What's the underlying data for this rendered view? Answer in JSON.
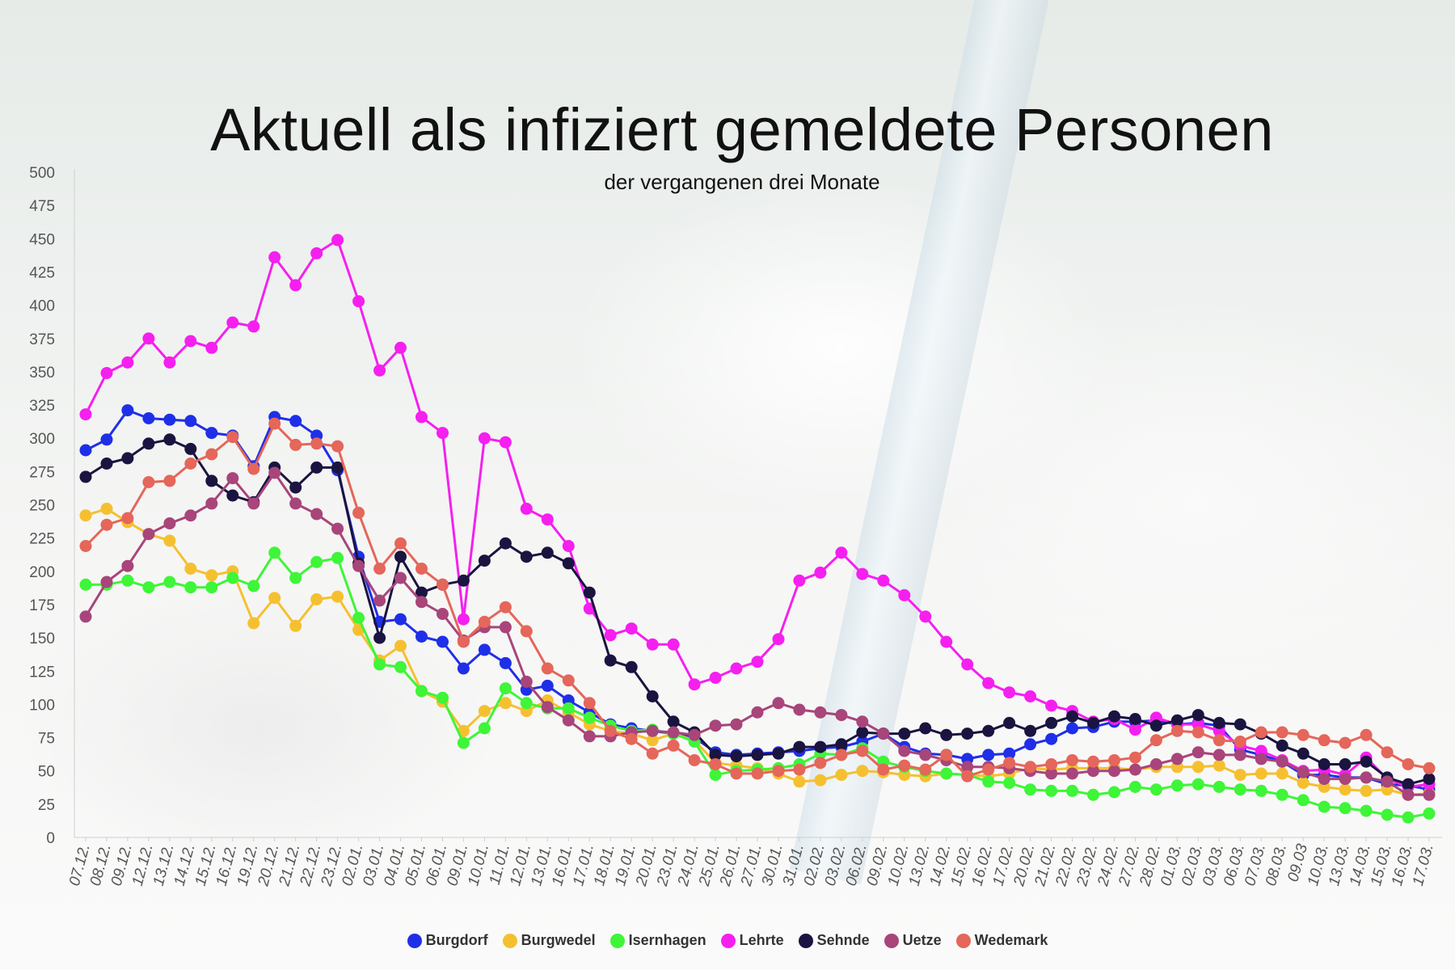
{
  "chart_data": {
    "type": "line",
    "title": "Aktuell als infiziert gemeldete Personen",
    "subtitle": "der vergangenen drei Monate",
    "xlabel": "",
    "ylabel": "",
    "ylim": [
      0,
      500
    ],
    "yticks": [
      0,
      25,
      50,
      75,
      100,
      125,
      150,
      175,
      200,
      225,
      250,
      275,
      300,
      325,
      350,
      375,
      400,
      425,
      450,
      475,
      500
    ],
    "categories": [
      "07.12.",
      "08.12.",
      "09.12.",
      "12.12.",
      "13.12.",
      "14.12.",
      "15.12.",
      "16.12.",
      "19.12.",
      "20.12.",
      "21.12.",
      "22.12.",
      "23.12.",
      "02.01.",
      "03.01.",
      "04.01.",
      "05.01.",
      "06.01.",
      "09.01.",
      "10.01.",
      "11.01.",
      "12.01.",
      "13.01.",
      "16.01.",
      "17.01.",
      "18.01.",
      "19.01.",
      "20.01.",
      "23.01.",
      "24.01.",
      "25.01.",
      "26.01.",
      "27.01.",
      "30.01.",
      "31.01.",
      "02.02.",
      "03.02.",
      "06.02.",
      "09.02.",
      "10.02.",
      "13.02.",
      "14.02.",
      "15.02.",
      "16.02.",
      "17.02.",
      "20.02.",
      "21.02.",
      "22.02.",
      "23.02.",
      "24.02.",
      "27.02.",
      "28.02.",
      "01.03.",
      "02.03.",
      "03.03.",
      "06.03.",
      "07.03.",
      "08.03.",
      "09.03",
      "10.03.",
      "13.03.",
      "14.03.",
      "15.03.",
      "16.03.",
      "17.03."
    ],
    "series": [
      {
        "name": "Burgdorf",
        "color": "#1f2fe8",
        "values": [
          291,
          299,
          321,
          315,
          314,
          313,
          304,
          302,
          279,
          316,
          313,
          302,
          276,
          211,
          162,
          164,
          151,
          147,
          127,
          141,
          131,
          111,
          114,
          103,
          94,
          85,
          82,
          80,
          78,
          75,
          64,
          62,
          63,
          64,
          65,
          67,
          68,
          72,
          78,
          68,
          63,
          62,
          59,
          62,
          63,
          70,
          74,
          82,
          83,
          87,
          87,
          88,
          85,
          86,
          84,
          66,
          62,
          57,
          47,
          47,
          45,
          45,
          40,
          39,
          36
        ]
      },
      {
        "name": "Burgwedel",
        "color": "#f5c030",
        "values": [
          242,
          247,
          237,
          228,
          223,
          202,
          197,
          200,
          161,
          180,
          159,
          179,
          181,
          156,
          133,
          144,
          110,
          102,
          80,
          95,
          101,
          95,
          103,
          94,
          85,
          80,
          78,
          73,
          78,
          73,
          56,
          54,
          52,
          48,
          42,
          43,
          47,
          50,
          49,
          47,
          46,
          48,
          47,
          46,
          48,
          52,
          51,
          52,
          52,
          52,
          51,
          53,
          53,
          53,
          54,
          47,
          48,
          48,
          41,
          38,
          36,
          35,
          36,
          32,
          33
        ]
      },
      {
        "name": "Isernhagen",
        "color": "#3ef538",
        "values": [
          190,
          190,
          193,
          188,
          192,
          188,
          188,
          195,
          189,
          214,
          195,
          207,
          210,
          165,
          130,
          128,
          110,
          105,
          71,
          82,
          112,
          101,
          97,
          97,
          90,
          84,
          80,
          81,
          78,
          72,
          47,
          50,
          51,
          52,
          55,
          63,
          62,
          67,
          57,
          53,
          50,
          48,
          47,
          42,
          41,
          36,
          35,
          35,
          32,
          34,
          38,
          36,
          39,
          40,
          38,
          36,
          35,
          32,
          28,
          23,
          22,
          20,
          17,
          15,
          18
        ]
      },
      {
        "name": "Lehrte",
        "color": "#f51ff0",
        "values": [
          318,
          349,
          357,
          375,
          357,
          373,
          368,
          387,
          384,
          436,
          415,
          439,
          449,
          403,
          351,
          368,
          316,
          304,
          164,
          300,
          297,
          247,
          239,
          219,
          172,
          152,
          157,
          145,
          145,
          115,
          120,
          127,
          132,
          149,
          193,
          199,
          214,
          198,
          193,
          182,
          166,
          147,
          130,
          116,
          109,
          106,
          99,
          95,
          87,
          89,
          81,
          90,
          85,
          85,
          80,
          69,
          65,
          58,
          50,
          51,
          47,
          60,
          44,
          38,
          40
        ]
      },
      {
        "name": "Sehnde",
        "color": "#1a1440",
        "values": [
          271,
          281,
          285,
          296,
          299,
          292,
          268,
          257,
          252,
          278,
          263,
          278,
          278,
          206,
          150,
          211,
          184,
          190,
          193,
          208,
          221,
          211,
          214,
          206,
          184,
          133,
          128,
          106,
          87,
          79,
          62,
          61,
          62,
          63,
          68,
          68,
          70,
          79,
          78,
          78,
          82,
          77,
          78,
          80,
          86,
          80,
          86,
          91,
          86,
          91,
          89,
          84,
          88,
          92,
          86,
          85,
          78,
          69,
          63,
          55,
          55,
          57,
          45,
          40,
          44
        ]
      },
      {
        "name": "Uetze",
        "color": "#a8457a",
        "values": [
          166,
          192,
          204,
          228,
          236,
          242,
          251,
          270,
          251,
          274,
          251,
          243,
          232,
          204,
          178,
          195,
          177,
          168,
          148,
          158,
          158,
          117,
          98,
          88,
          76,
          76,
          79,
          80,
          79,
          77,
          84,
          85,
          94,
          101,
          96,
          94,
          92,
          87,
          78,
          65,
          62,
          58,
          53,
          53,
          52,
          50,
          48,
          48,
          50,
          50,
          51,
          55,
          59,
          64,
          62,
          62,
          59,
          57,
          49,
          44,
          44,
          45,
          42,
          32,
          32
        ]
      },
      {
        "name": "Wedemark",
        "color": "#e5665a",
        "values": [
          219,
          235,
          240,
          267,
          268,
          281,
          288,
          301,
          277,
          311,
          295,
          296,
          294,
          244,
          202,
          221,
          202,
          190,
          147,
          162,
          173,
          155,
          127,
          118,
          101,
          80,
          74,
          63,
          69,
          58,
          55,
          48,
          48,
          50,
          51,
          56,
          62,
          65,
          51,
          54,
          51,
          62,
          46,
          51,
          56,
          53,
          55,
          58,
          57,
          58,
          60,
          73,
          80,
          79,
          73,
          72,
          79,
          79,
          77,
          73,
          71,
          77,
          64,
          55,
          52
        ]
      }
    ]
  }
}
